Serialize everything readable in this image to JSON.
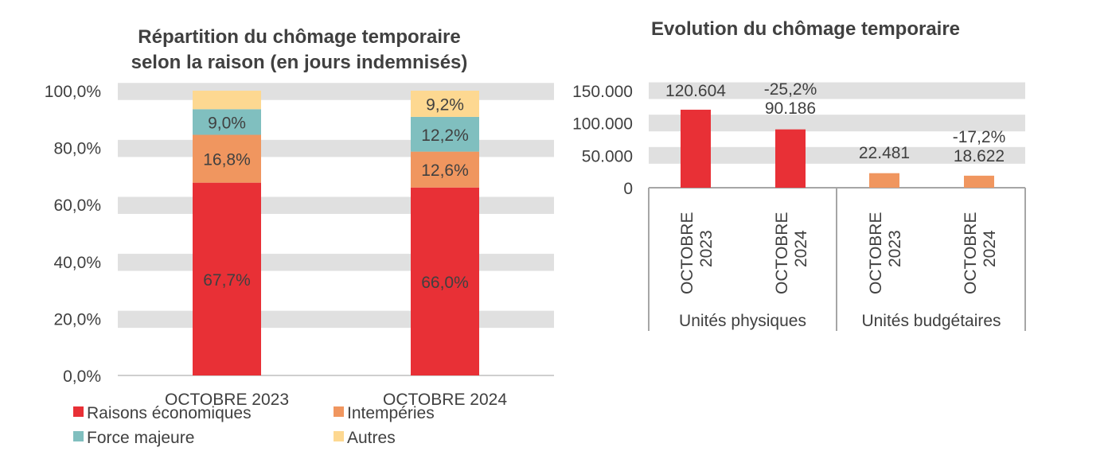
{
  "chart_data": [
    {
      "type": "bar",
      "stacked": true,
      "title": [
        "Répartition du chômage temporaire",
        "selon la raison (en jours indemnisés)"
      ],
      "categories": [
        "OCTOBRE 2023",
        "OCTOBRE 2024"
      ],
      "ylim": [
        0,
        100
      ],
      "yticks": [
        "0,0%",
        "20,0%",
        "40,0%",
        "60,0%",
        "80,0%",
        "100,0%"
      ],
      "grid": "banded",
      "legend_position": "bottom",
      "series": [
        {
          "name": "Raisons économiques",
          "color": "#E83036",
          "values": [
            67.7,
            66.0
          ],
          "labels": [
            "67,7%",
            "66,0%"
          ]
        },
        {
          "name": "Intempéries",
          "color": "#F0965F",
          "values": [
            16.8,
            12.6
          ],
          "labels": [
            "16,8%",
            "12,6%"
          ]
        },
        {
          "name": "Force majeure",
          "color": "#80BFBF",
          "values": [
            9.0,
            12.2
          ],
          "labels": [
            "9,0%",
            "12,2%"
          ]
        },
        {
          "name": "Autres",
          "color": "#FDD891",
          "values": [
            6.5,
            9.2
          ],
          "labels": [
            "",
            "9,2%"
          ]
        }
      ]
    },
    {
      "type": "bar",
      "title": "Evolution du chômage temporaire",
      "ylim": [
        0,
        150000
      ],
      "yticks": [
        "0",
        "50.000",
        "100.000",
        "150.000"
      ],
      "grid": "banded",
      "groups": [
        {
          "name": "Unités physiques",
          "color": "#E83036",
          "categories": [
            "OCTOBRE 2023",
            "OCTOBRE 2024"
          ],
          "values": [
            120604,
            90186
          ],
          "labels": [
            "120.604",
            "90.186"
          ],
          "change": [
            "",
            "-25,2%"
          ]
        },
        {
          "name": "Unités budgétaires",
          "color": "#F0965F",
          "categories": [
            "OCTOBRE 2023",
            "OCTOBRE 2024"
          ],
          "values": [
            22481,
            18622
          ],
          "labels": [
            "22.481",
            "18.622"
          ],
          "change": [
            "",
            "-17,2%"
          ]
        }
      ]
    }
  ]
}
